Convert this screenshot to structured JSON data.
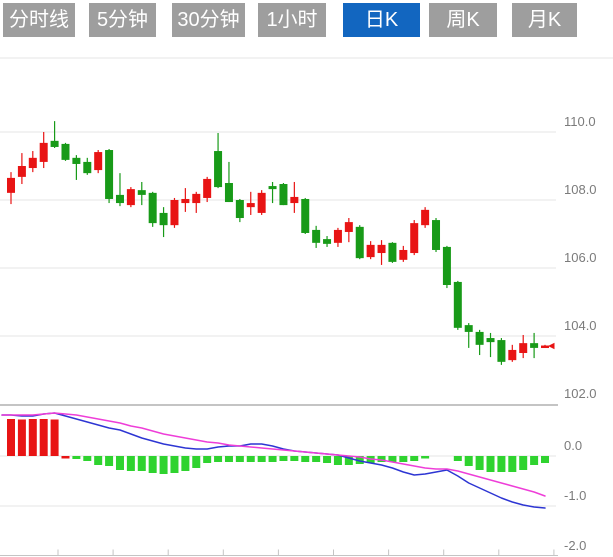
{
  "toolbar": {
    "tabs": [
      {
        "label": "分时线",
        "active": false
      },
      {
        "label": "5分钟",
        "active": false
      },
      {
        "label": "30分钟",
        "active": false
      },
      {
        "label": "1小时",
        "active": false
      },
      {
        "label": "日K",
        "active": true
      },
      {
        "label": "周K",
        "active": false
      },
      {
        "label": "月K",
        "active": false
      }
    ],
    "active_bg": "#1266c0",
    "inactive_bg": "#9e9e9e",
    "text_color": "#ffffff"
  },
  "colors": {
    "up_red": "#e81414",
    "down_green": "#189a18",
    "hist_green": "#2fd32f",
    "dif_blue": "#2d35d3",
    "dea_magenta": "#ee3ed8",
    "gridline": "#e6e6e6",
    "panel_separator": "#c4c4c4",
    "axis_line": "#c4c4c4",
    "label_gray": "#7b7b7b"
  },
  "chart_data": {
    "type": "candlestick_with_macd",
    "title": "",
    "legend": [],
    "grid": true,
    "price_axis": {
      "side": "right",
      "ticks": [
        110.0,
        108.0,
        106.0,
        104.0,
        102.0
      ],
      "tick_labels": [
        "110.0",
        "108.0",
        "106.0",
        "104.0",
        "102.0"
      ],
      "range": [
        102.0,
        112.2
      ]
    },
    "indicator_axis": {
      "side": "right",
      "ticks": [
        0.0,
        -1.0,
        -2.0
      ],
      "tick_labels": [
        "0.0",
        "-1.0",
        "-2.0"
      ],
      "range": [
        -2.0,
        1.0
      ]
    },
    "candles": [
      [
        108.21,
        108.82,
        107.88,
        108.65
      ],
      [
        108.68,
        109.38,
        108.47,
        109.0
      ],
      [
        108.94,
        109.44,
        108.82,
        109.24
      ],
      [
        109.12,
        110.0,
        108.94,
        109.68
      ],
      [
        109.74,
        110.32,
        109.53,
        109.56
      ],
      [
        109.65,
        109.68,
        109.15,
        109.18
      ],
      [
        109.24,
        109.32,
        108.59,
        109.06
      ],
      [
        109.12,
        109.24,
        108.74,
        108.79
      ],
      [
        108.88,
        109.47,
        108.79,
        109.41
      ],
      [
        109.47,
        109.5,
        107.91,
        108.03
      ],
      [
        108.15,
        108.79,
        107.82,
        107.91
      ],
      [
        107.85,
        108.38,
        107.79,
        108.32
      ],
      [
        108.29,
        108.53,
        107.85,
        108.15
      ],
      [
        108.21,
        108.24,
        107.21,
        107.32
      ],
      [
        107.62,
        107.79,
        106.91,
        107.26
      ],
      [
        107.26,
        108.06,
        107.18,
        108.0
      ],
      [
        107.91,
        108.35,
        107.65,
        108.03
      ],
      [
        107.91,
        108.24,
        107.62,
        108.18
      ],
      [
        108.06,
        108.68,
        107.94,
        108.62
      ],
      [
        109.44,
        109.97,
        108.35,
        108.38
      ],
      [
        108.5,
        109.12,
        107.94,
        107.94
      ],
      [
        108.0,
        108.03,
        107.35,
        107.47
      ],
      [
        107.79,
        108.24,
        107.56,
        107.91
      ],
      [
        107.62,
        108.29,
        107.56,
        108.21
      ],
      [
        108.41,
        108.53,
        107.91,
        108.32
      ],
      [
        108.47,
        108.5,
        107.85,
        107.85
      ],
      [
        107.91,
        108.53,
        107.62,
        108.09
      ],
      [
        108.03,
        108.06,
        107.0,
        107.03
      ],
      [
        107.12,
        107.24,
        106.59,
        106.74
      ],
      [
        106.85,
        106.94,
        106.62,
        106.71
      ],
      [
        106.74,
        107.18,
        106.62,
        107.12
      ],
      [
        107.06,
        107.47,
        106.76,
        107.35
      ],
      [
        107.21,
        107.26,
        106.26,
        106.29
      ],
      [
        106.32,
        106.79,
        106.26,
        106.68
      ],
      [
        106.44,
        106.82,
        106.09,
        106.68
      ],
      [
        106.74,
        106.76,
        106.15,
        106.18
      ],
      [
        106.24,
        106.65,
        106.18,
        106.53
      ],
      [
        106.44,
        107.41,
        106.38,
        107.32
      ],
      [
        107.26,
        107.79,
        107.18,
        107.71
      ],
      [
        107.41,
        107.47,
        106.47,
        106.53
      ],
      [
        106.62,
        106.65,
        105.41,
        105.5
      ],
      [
        105.59,
        105.62,
        104.18,
        104.24
      ],
      [
        104.32,
        104.38,
        103.65,
        104.12
      ],
      [
        104.12,
        104.18,
        103.44,
        103.74
      ],
      [
        103.94,
        104.09,
        103.38,
        103.82
      ],
      [
        103.88,
        103.94,
        103.15,
        103.24
      ],
      [
        103.29,
        103.74,
        103.24,
        103.59
      ],
      [
        103.5,
        104.03,
        103.35,
        103.79
      ],
      [
        103.79,
        104.09,
        103.35,
        103.65
      ],
      [
        103.68,
        103.74,
        103.65,
        103.72
      ]
    ],
    "last_price": 103.7,
    "macd": {
      "histogram": [
        0.74,
        0.73,
        0.74,
        0.74,
        0.73,
        -0.05,
        -0.06,
        -0.1,
        -0.18,
        -0.2,
        -0.28,
        -0.3,
        -0.3,
        -0.34,
        -0.36,
        -0.34,
        -0.3,
        -0.24,
        -0.14,
        -0.12,
        -0.12,
        -0.12,
        -0.12,
        -0.12,
        -0.12,
        -0.1,
        -0.1,
        -0.12,
        -0.12,
        -0.14,
        -0.18,
        -0.18,
        -0.16,
        -0.14,
        -0.12,
        -0.12,
        -0.12,
        -0.1,
        -0.05,
        0,
        0,
        -0.1,
        -0.2,
        -0.28,
        -0.32,
        -0.32,
        -0.32,
        -0.28,
        -0.18,
        -0.14
      ],
      "histogram_colors": [
        "r",
        "r",
        "r",
        "r",
        "r",
        "r",
        "g",
        "g",
        "g",
        "g",
        "g",
        "g",
        "g",
        "g",
        "g",
        "g",
        "g",
        "g",
        "g",
        "g",
        "g",
        "g",
        "g",
        "g",
        "g",
        "g",
        "g",
        "g",
        "g",
        "g",
        "g",
        "g",
        "g",
        "g",
        "g",
        "g",
        "g",
        "g",
        "g",
        "g",
        "g",
        "g",
        "g",
        "g",
        "g",
        "g",
        "g",
        "g",
        "g",
        "g"
      ],
      "dif": [
        0.82,
        0.8,
        0.8,
        0.84,
        0.86,
        0.8,
        0.74,
        0.68,
        0.62,
        0.56,
        0.52,
        0.44,
        0.36,
        0.3,
        0.24,
        0.2,
        0.16,
        0.14,
        0.14,
        0.18,
        0.2,
        0.2,
        0.24,
        0.24,
        0.2,
        0.14,
        0.1,
        0.08,
        0.06,
        0.04,
        0.02,
        -0.04,
        -0.1,
        -0.14,
        -0.18,
        -0.24,
        -0.32,
        -0.38,
        -0.36,
        -0.32,
        -0.28,
        -0.4,
        -0.54,
        -0.64,
        -0.74,
        -0.84,
        -0.92,
        -0.98,
        -1.02,
        -1.04
      ],
      "dea": [
        0.82,
        0.82,
        0.82,
        0.84,
        0.86,
        0.84,
        0.82,
        0.78,
        0.74,
        0.7,
        0.66,
        0.6,
        0.56,
        0.5,
        0.44,
        0.4,
        0.36,
        0.32,
        0.28,
        0.26,
        0.22,
        0.2,
        0.18,
        0.16,
        0.14,
        0.12,
        0.1,
        0.08,
        0.06,
        0.04,
        0.02,
        0.0,
        -0.02,
        -0.06,
        -0.08,
        -0.12,
        -0.16,
        -0.2,
        -0.24,
        -0.26,
        -0.26,
        -0.3,
        -0.36,
        -0.42,
        -0.48,
        -0.54,
        -0.6,
        -0.66,
        -0.72,
        -0.8
      ]
    }
  }
}
